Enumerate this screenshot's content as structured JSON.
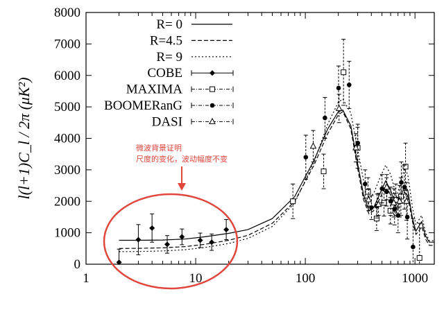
{
  "chart_data": {
    "type": "scatter",
    "title": "",
    "xlabel": "",
    "ylabel": "l(l+1)C_l / 2π (μK²)",
    "xscale": "log",
    "xlim": [
      1,
      1500
    ],
    "ylim": [
      0,
      8000
    ],
    "x_ticks": [
      {
        "value": 1,
        "label": "1"
      },
      {
        "value": 10,
        "label": "10"
      },
      {
        "value": 100,
        "label": "100"
      },
      {
        "value": 1000,
        "label": "1000"
      }
    ],
    "y_ticks": [
      0,
      1000,
      2000,
      3000,
      4000,
      5000,
      6000,
      7000,
      8000
    ],
    "legend_position": "top-left",
    "series": [
      {
        "name": "R=   0",
        "kind": "line",
        "style": "solid",
        "points": [
          [
            2,
            760
          ],
          [
            3,
            760
          ],
          [
            5,
            770
          ],
          [
            8,
            800
          ],
          [
            12,
            870
          ],
          [
            20,
            980
          ],
          [
            30,
            1100
          ],
          [
            50,
            1450
          ],
          [
            80,
            2150
          ],
          [
            120,
            3300
          ],
          [
            160,
            4300
          ],
          [
            200,
            4850
          ],
          [
            220,
            4900
          ],
          [
            260,
            4400
          ],
          [
            300,
            3200
          ],
          [
            340,
            2200
          ],
          [
            380,
            1700
          ],
          [
            420,
            1800
          ],
          [
            480,
            2250
          ],
          [
            540,
            2650
          ],
          [
            600,
            2350
          ],
          [
            680,
            1750
          ],
          [
            740,
            2100
          ],
          [
            800,
            2500
          ],
          [
            860,
            2350
          ],
          [
            950,
            1450
          ],
          [
            1020,
            1050
          ],
          [
            1080,
            1200
          ],
          [
            1150,
            1350
          ],
          [
            1250,
            900
          ],
          [
            1350,
            700
          ],
          [
            1500,
            700
          ]
        ]
      },
      {
        "name": "R=4.5",
        "kind": "line",
        "style": "dashed",
        "points": [
          [
            2,
            500
          ],
          [
            3,
            505
          ],
          [
            5,
            520
          ],
          [
            8,
            560
          ],
          [
            12,
            630
          ],
          [
            20,
            760
          ],
          [
            30,
            920
          ],
          [
            50,
            1300
          ],
          [
            80,
            2000
          ],
          [
            120,
            3150
          ],
          [
            160,
            4150
          ],
          [
            200,
            4750
          ],
          [
            220,
            4850
          ],
          [
            260,
            4300
          ],
          [
            300,
            3050
          ],
          [
            340,
            2050
          ],
          [
            380,
            1600
          ],
          [
            420,
            1700
          ],
          [
            480,
            2100
          ],
          [
            540,
            2500
          ],
          [
            600,
            2200
          ],
          [
            680,
            1650
          ],
          [
            740,
            1950
          ],
          [
            800,
            2300
          ],
          [
            860,
            2150
          ],
          [
            950,
            1350
          ],
          [
            1020,
            950
          ],
          [
            1080,
            1050
          ],
          [
            1150,
            1200
          ],
          [
            1250,
            800
          ],
          [
            1350,
            600
          ],
          [
            1500,
            600
          ]
        ]
      },
      {
        "name": "R=   9",
        "kind": "line",
        "style": "dotted",
        "points": [
          [
            2,
            400
          ],
          [
            3,
            405
          ],
          [
            5,
            420
          ],
          [
            8,
            460
          ],
          [
            12,
            530
          ],
          [
            20,
            660
          ],
          [
            30,
            820
          ],
          [
            50,
            1200
          ],
          [
            80,
            1950
          ],
          [
            120,
            3250
          ],
          [
            160,
            4450
          ],
          [
            200,
            5150
          ],
          [
            220,
            5250
          ],
          [
            260,
            4800
          ],
          [
            300,
            3650
          ],
          [
            340,
            2650
          ],
          [
            380,
            2100
          ],
          [
            420,
            2250
          ],
          [
            480,
            2750
          ],
          [
            540,
            3150
          ],
          [
            600,
            2850
          ],
          [
            680,
            2150
          ],
          [
            740,
            2600
          ],
          [
            800,
            3050
          ],
          [
            860,
            2850
          ],
          [
            950,
            1800
          ],
          [
            1020,
            1250
          ],
          [
            1080,
            1400
          ],
          [
            1150,
            1550
          ],
          [
            1250,
            1000
          ],
          [
            1350,
            750
          ],
          [
            1500,
            750
          ]
        ]
      },
      {
        "name": "COBE",
        "kind": "points",
        "marker": "diamond",
        "points": [
          {
            "x": 2,
            "y": 60,
            "err": 420
          },
          {
            "x": 3,
            "y": 780,
            "err": 480
          },
          {
            "x": 4,
            "y": 1150,
            "err": 450
          },
          {
            "x": 5.5,
            "y": 630,
            "err": 280
          },
          {
            "x": 7.5,
            "y": 870,
            "err": 250
          },
          {
            "x": 11,
            "y": 760,
            "err": 230
          },
          {
            "x": 14,
            "y": 700,
            "err": 260
          },
          {
            "x": 19,
            "y": 1100,
            "err": 320
          }
        ]
      },
      {
        "name": "MAXIMA",
        "kind": "points",
        "marker": "open-square",
        "points": [
          {
            "x": 77,
            "y": 2000,
            "err": 550
          },
          {
            "x": 147,
            "y": 2950,
            "err": 550
          },
          {
            "x": 223,
            "y": 6100,
            "err": 1050
          },
          {
            "x": 300,
            "y": 3700,
            "err": 650
          },
          {
            "x": 373,
            "y": 2300,
            "err": 450
          },
          {
            "x": 447,
            "y": 1450,
            "err": 380
          },
          {
            "x": 522,
            "y": 1950,
            "err": 420
          },
          {
            "x": 597,
            "y": 1700,
            "err": 420
          },
          {
            "x": 670,
            "y": 2050,
            "err": 500
          },
          {
            "x": 745,
            "y": 2150,
            "err": 600
          },
          {
            "x": 820,
            "y": 3100,
            "err": 750
          },
          {
            "x": 1100,
            "y": 200,
            "err": 1100
          }
        ]
      },
      {
        "name": "BOOMERanG",
        "kind": "points",
        "marker": "filled-circle",
        "points": [
          {
            "x": 101,
            "y": 3400,
            "err": 700
          },
          {
            "x": 151,
            "y": 4650,
            "err": 650
          },
          {
            "x": 201,
            "y": 5600,
            "err": 700
          },
          {
            "x": 251,
            "y": 5700,
            "err": 750
          },
          {
            "x": 301,
            "y": 3850,
            "err": 600
          },
          {
            "x": 351,
            "y": 2550,
            "err": 450
          },
          {
            "x": 401,
            "y": 1800,
            "err": 380
          },
          {
            "x": 451,
            "y": 1850,
            "err": 380
          },
          {
            "x": 501,
            "y": 2400,
            "err": 450
          },
          {
            "x": 551,
            "y": 2300,
            "err": 450
          },
          {
            "x": 601,
            "y": 2000,
            "err": 450
          },
          {
            "x": 651,
            "y": 1750,
            "err": 500
          },
          {
            "x": 701,
            "y": 1550,
            "err": 550
          },
          {
            "x": 751,
            "y": 2600,
            "err": 650
          },
          {
            "x": 801,
            "y": 2450,
            "err": 700
          },
          {
            "x": 851,
            "y": 1500,
            "err": 700
          },
          {
            "x": 960,
            "y": 550,
            "err": 900
          }
        ]
      },
      {
        "name": "DASI",
        "kind": "points",
        "marker": "open-triangle",
        "points": [
          {
            "x": 118,
            "y": 3750,
            "err": 500
          },
          {
            "x": 203,
            "y": 4950,
            "err": 450
          },
          {
            "x": 289,
            "y": 3700,
            "err": 450
          },
          {
            "x": 377,
            "y": 2050,
            "err": 350
          },
          {
            "x": 465,
            "y": 1900,
            "err": 350
          },
          {
            "x": 553,
            "y": 2450,
            "err": 400
          },
          {
            "x": 641,
            "y": 1950,
            "err": 450
          },
          {
            "x": 725,
            "y": 2000,
            "err": 500
          },
          {
            "x": 837,
            "y": 2000,
            "err": 600
          }
        ]
      }
    ],
    "annotation": {
      "lines": [
        "微波背景证明",
        "尺度的变化，波动幅度不变"
      ],
      "color": "#e0463c",
      "highlight_ellipse": "low-l region (l ≈ 2–30)",
      "arrow": "pointing down to the highlighted region"
    }
  }
}
